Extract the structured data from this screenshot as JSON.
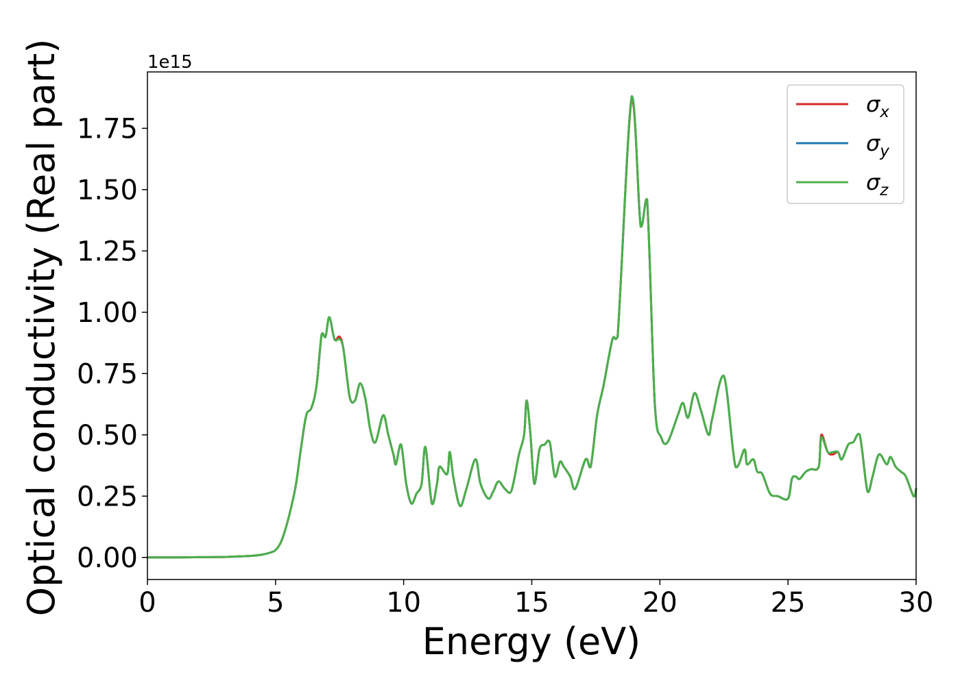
{
  "chart_data": {
    "type": "line",
    "xlabel": "Energy (eV)",
    "ylabel": "Optical conductivity (Real part)",
    "y_offset_label": "1e15",
    "xlim": [
      0,
      30
    ],
    "ylim": [
      -0.09,
      1.98
    ],
    "x_ticks": [
      0,
      5,
      10,
      15,
      20,
      25,
      30
    ],
    "x_tick_labels": [
      "0",
      "5",
      "10",
      "15",
      "20",
      "25",
      "30"
    ],
    "y_ticks": [
      0.0,
      0.25,
      0.5,
      0.75,
      1.0,
      1.25,
      1.5,
      1.75
    ],
    "y_tick_labels": [
      "0.00",
      "0.25",
      "0.50",
      "0.75",
      "1.00",
      "1.25",
      "1.50",
      "1.75"
    ],
    "grid": false,
    "legend_position": "top-right",
    "legend": [
      {
        "symbol": "σ",
        "sub": "x",
        "color": "#d62728"
      },
      {
        "symbol": "σ",
        "sub": "y",
        "color": "#1f77b4"
      },
      {
        "symbol": "σ",
        "sub": "z",
        "color": "#4daf4a"
      }
    ],
    "x": [
      0.0,
      1.0,
      2.0,
      3.0,
      3.5,
      4.0,
      4.5,
      4.8,
      5.0,
      5.2,
      5.4,
      5.6,
      5.8,
      6.0,
      6.2,
      6.4,
      6.6,
      6.8,
      6.95,
      7.1,
      7.3,
      7.5,
      7.65,
      7.9,
      8.1,
      8.3,
      8.5,
      8.7,
      8.9,
      9.2,
      9.4,
      9.6,
      9.7,
      9.9,
      10.1,
      10.3,
      10.5,
      10.7,
      10.85,
      11.1,
      11.3,
      11.4,
      11.7,
      11.8,
      11.95,
      12.2,
      12.45,
      12.8,
      13.0,
      13.3,
      13.5,
      13.7,
      13.95,
      14.2,
      14.5,
      14.7,
      14.8,
      14.95,
      15.1,
      15.3,
      15.5,
      15.7,
      15.9,
      16.1,
      16.25,
      16.5,
      16.7,
      17.1,
      17.3,
      17.55,
      17.8,
      18.15,
      18.35,
      18.9,
      19.25,
      19.5,
      19.8,
      20.05,
      20.3,
      20.7,
      20.9,
      21.1,
      21.35,
      21.6,
      21.9,
      22.05,
      22.5,
      22.95,
      23.3,
      23.4,
      23.65,
      23.8,
      24.0,
      24.3,
      24.6,
      25.0,
      25.15,
      25.3,
      25.45,
      25.7,
      25.9,
      26.2,
      26.3,
      26.55,
      26.75,
      26.95,
      27.1,
      27.35,
      27.55,
      27.8,
      28.1,
      28.3,
      28.55,
      28.85,
      29.0,
      29.2,
      29.4,
      29.6,
      29.9,
      30.0
    ],
    "series": [
      {
        "color": "#d62728",
        "values": [
          0.0,
          0.0,
          0.001,
          0.002,
          0.004,
          0.006,
          0.012,
          0.02,
          0.03,
          0.06,
          0.12,
          0.2,
          0.3,
          0.45,
          0.58,
          0.61,
          0.7,
          0.91,
          0.9,
          0.98,
          0.89,
          0.9,
          0.85,
          0.65,
          0.64,
          0.71,
          0.65,
          0.52,
          0.47,
          0.58,
          0.5,
          0.42,
          0.38,
          0.46,
          0.3,
          0.22,
          0.26,
          0.3,
          0.45,
          0.22,
          0.3,
          0.37,
          0.34,
          0.43,
          0.32,
          0.21,
          0.28,
          0.4,
          0.3,
          0.24,
          0.27,
          0.31,
          0.28,
          0.27,
          0.42,
          0.5,
          0.64,
          0.5,
          0.3,
          0.44,
          0.46,
          0.47,
          0.33,
          0.39,
          0.37,
          0.33,
          0.28,
          0.4,
          0.37,
          0.58,
          0.7,
          0.89,
          0.9,
          1.87,
          1.35,
          1.46,
          0.63,
          0.49,
          0.47,
          0.58,
          0.63,
          0.57,
          0.67,
          0.6,
          0.5,
          0.57,
          0.74,
          0.37,
          0.44,
          0.38,
          0.4,
          0.35,
          0.34,
          0.26,
          0.25,
          0.24,
          0.32,
          0.33,
          0.32,
          0.35,
          0.36,
          0.37,
          0.5,
          0.43,
          0.42,
          0.43,
          0.4,
          0.46,
          0.47,
          0.5,
          0.27,
          0.33,
          0.42,
          0.38,
          0.41,
          0.37,
          0.35,
          0.33,
          0.25,
          0.28
        ]
      },
      {
        "color": "#1f77b4",
        "values": [
          0.0,
          0.0,
          0.001,
          0.002,
          0.004,
          0.006,
          0.012,
          0.02,
          0.03,
          0.06,
          0.12,
          0.2,
          0.3,
          0.45,
          0.58,
          0.61,
          0.7,
          0.91,
          0.9,
          0.98,
          0.89,
          0.89,
          0.85,
          0.65,
          0.64,
          0.71,
          0.65,
          0.52,
          0.47,
          0.58,
          0.5,
          0.42,
          0.38,
          0.46,
          0.3,
          0.22,
          0.26,
          0.3,
          0.45,
          0.22,
          0.3,
          0.37,
          0.34,
          0.43,
          0.32,
          0.21,
          0.28,
          0.4,
          0.3,
          0.24,
          0.27,
          0.31,
          0.28,
          0.27,
          0.42,
          0.5,
          0.64,
          0.5,
          0.3,
          0.44,
          0.46,
          0.47,
          0.33,
          0.39,
          0.37,
          0.33,
          0.28,
          0.4,
          0.37,
          0.58,
          0.7,
          0.89,
          0.9,
          1.88,
          1.35,
          1.46,
          0.63,
          0.49,
          0.47,
          0.58,
          0.63,
          0.57,
          0.67,
          0.6,
          0.5,
          0.57,
          0.74,
          0.37,
          0.44,
          0.38,
          0.4,
          0.35,
          0.34,
          0.26,
          0.25,
          0.24,
          0.32,
          0.33,
          0.32,
          0.35,
          0.36,
          0.37,
          0.49,
          0.43,
          0.43,
          0.43,
          0.4,
          0.46,
          0.47,
          0.5,
          0.27,
          0.33,
          0.42,
          0.38,
          0.41,
          0.37,
          0.35,
          0.33,
          0.25,
          0.28
        ]
      },
      {
        "color": "#4daf4a",
        "values": [
          0.0,
          0.0,
          0.001,
          0.002,
          0.004,
          0.006,
          0.012,
          0.02,
          0.03,
          0.06,
          0.12,
          0.2,
          0.3,
          0.45,
          0.58,
          0.61,
          0.7,
          0.91,
          0.9,
          0.98,
          0.89,
          0.89,
          0.85,
          0.65,
          0.64,
          0.71,
          0.65,
          0.52,
          0.47,
          0.58,
          0.5,
          0.42,
          0.38,
          0.46,
          0.3,
          0.22,
          0.26,
          0.3,
          0.45,
          0.22,
          0.3,
          0.37,
          0.34,
          0.43,
          0.32,
          0.21,
          0.28,
          0.4,
          0.3,
          0.24,
          0.27,
          0.31,
          0.28,
          0.27,
          0.42,
          0.5,
          0.64,
          0.5,
          0.3,
          0.44,
          0.46,
          0.47,
          0.33,
          0.39,
          0.37,
          0.33,
          0.28,
          0.4,
          0.37,
          0.58,
          0.7,
          0.89,
          0.9,
          1.88,
          1.35,
          1.46,
          0.63,
          0.49,
          0.47,
          0.58,
          0.63,
          0.57,
          0.67,
          0.6,
          0.5,
          0.57,
          0.74,
          0.37,
          0.44,
          0.38,
          0.4,
          0.35,
          0.34,
          0.26,
          0.25,
          0.24,
          0.32,
          0.33,
          0.32,
          0.35,
          0.36,
          0.37,
          0.49,
          0.43,
          0.43,
          0.43,
          0.4,
          0.46,
          0.47,
          0.5,
          0.27,
          0.33,
          0.42,
          0.38,
          0.41,
          0.37,
          0.35,
          0.33,
          0.25,
          0.28
        ]
      }
    ]
  }
}
